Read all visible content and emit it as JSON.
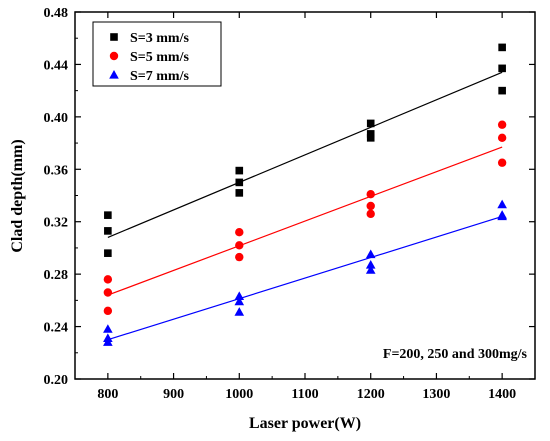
{
  "chart_data": {
    "type": "scatter",
    "xlabel": "Laser power(W)",
    "ylabel": "Clad depth(mm)",
    "xlim": [
      750,
      1450
    ],
    "ylim": [
      0.2,
      0.48
    ],
    "xticks": [
      800,
      900,
      1000,
      1100,
      1200,
      1300,
      1400
    ],
    "yticks": [
      0.2,
      0.24,
      0.28,
      0.32,
      0.36,
      0.4,
      0.44,
      0.48
    ],
    "grid": false,
    "legend_position": "top-left",
    "annotation": "F=200, 250 and 300mg/s",
    "series": [
      {
        "name": "S=3 mm/s",
        "color": "#000000",
        "marker": "square",
        "points": [
          [
            800,
            0.325
          ],
          [
            800,
            0.313
          ],
          [
            800,
            0.296
          ],
          [
            1000,
            0.359
          ],
          [
            1000,
            0.35
          ],
          [
            1000,
            0.342
          ],
          [
            1200,
            0.395
          ],
          [
            1200,
            0.387
          ],
          [
            1200,
            0.384
          ],
          [
            1400,
            0.453
          ],
          [
            1400,
            0.437
          ],
          [
            1400,
            0.42
          ]
        ],
        "fit": [
          [
            800,
            0.308
          ],
          [
            1400,
            0.434
          ]
        ]
      },
      {
        "name": "S=5 mm/s",
        "color": "#ff0000",
        "marker": "circle",
        "points": [
          [
            800,
            0.276
          ],
          [
            800,
            0.266
          ],
          [
            800,
            0.252
          ],
          [
            1000,
            0.312
          ],
          [
            1000,
            0.302
          ],
          [
            1000,
            0.293
          ],
          [
            1200,
            0.341
          ],
          [
            1200,
            0.332
          ],
          [
            1200,
            0.326
          ],
          [
            1400,
            0.394
          ],
          [
            1400,
            0.384
          ],
          [
            1400,
            0.365
          ]
        ],
        "fit": [
          [
            800,
            0.264
          ],
          [
            1400,
            0.377
          ]
        ]
      },
      {
        "name": "S=7 mm/s",
        "color": "#0000ff",
        "marker": "triangle",
        "points": [
          [
            800,
            0.238
          ],
          [
            800,
            0.231
          ],
          [
            800,
            0.228
          ],
          [
            1000,
            0.263
          ],
          [
            1000,
            0.259
          ],
          [
            1000,
            0.251
          ],
          [
            1200,
            0.295
          ],
          [
            1200,
            0.287
          ],
          [
            1200,
            0.283
          ],
          [
            1400,
            0.333
          ],
          [
            1400,
            0.325
          ],
          [
            1400,
            0.324
          ]
        ],
        "fit": [
          [
            800,
            0.23
          ],
          [
            1400,
            0.324
          ]
        ]
      }
    ]
  }
}
